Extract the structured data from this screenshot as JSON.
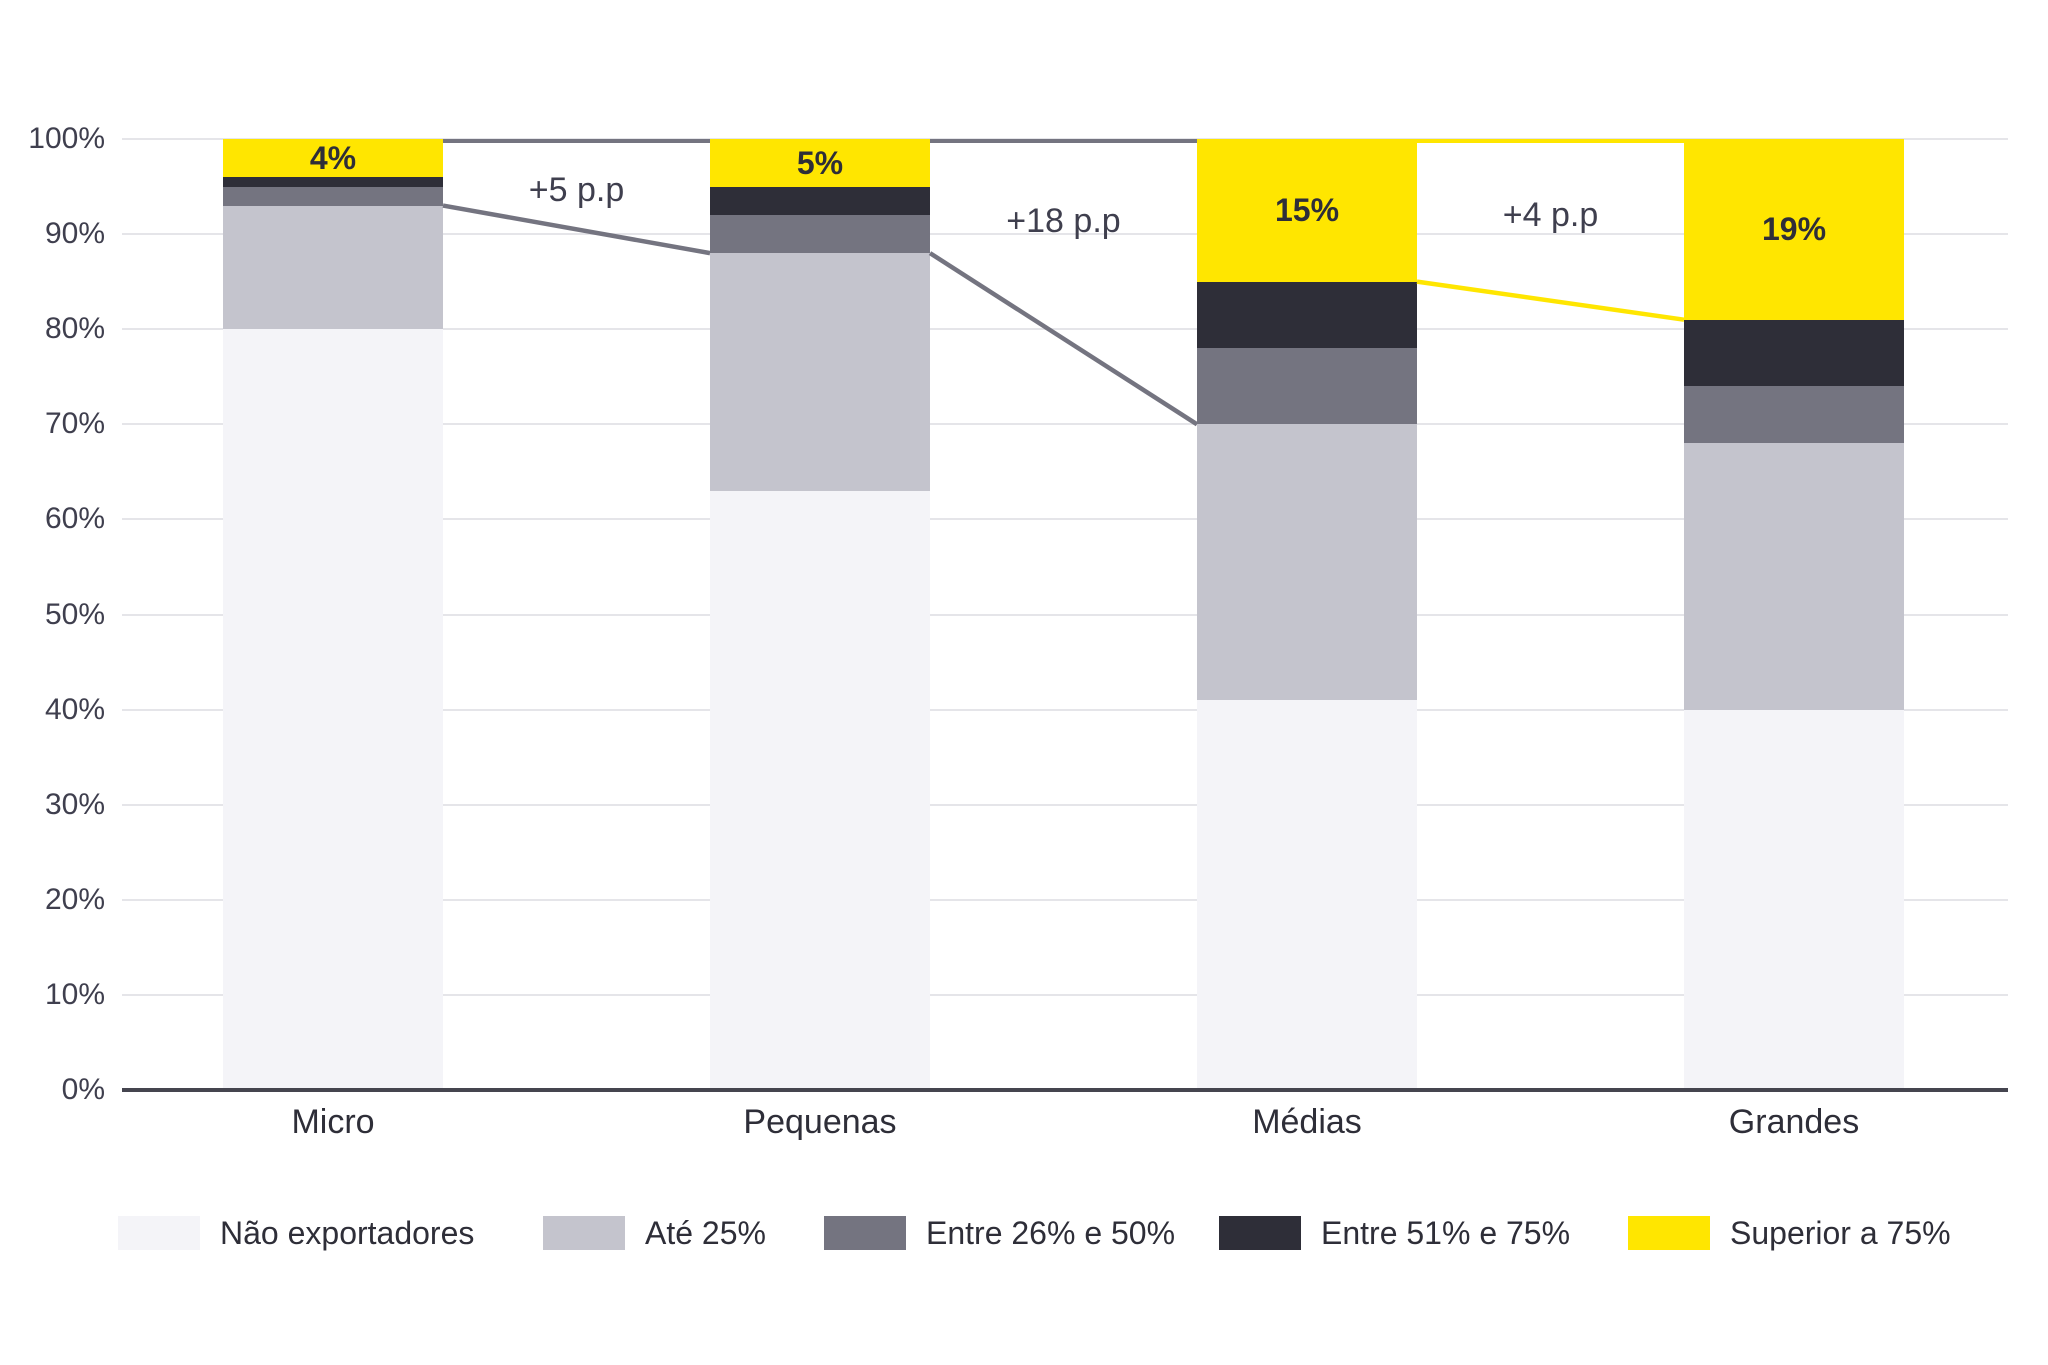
{
  "chart_data": {
    "type": "bar",
    "variant": "stacked-100-percent",
    "title": "",
    "categories": [
      "Micro",
      "Pequenas",
      "Médias",
      "Grandes"
    ],
    "series": [
      {
        "name": "Não exportadores",
        "color": "#F4F4F8",
        "values": [
          80,
          63,
          41,
          40
        ]
      },
      {
        "name": "Até 25%",
        "color": "#C4C4CD",
        "values": [
          13,
          25,
          29,
          28
        ]
      },
      {
        "name": "Entre 26% e 50%",
        "color": "#747480",
        "values": [
          2,
          4,
          8,
          6
        ]
      },
      {
        "name": "Entre 51% e 75%",
        "color": "#2E2E38",
        "values": [
          1,
          3,
          7,
          7
        ]
      },
      {
        "name": "Superior a 75%",
        "color": "#FFE600",
        "values": [
          4,
          5,
          15,
          19
        ],
        "data_labels": [
          "4%",
          "5%",
          "15%",
          "19%"
        ]
      }
    ],
    "y_axis": {
      "min": 0,
      "max": 100,
      "step": 10,
      "tick_labels": [
        "0%",
        "10%",
        "20%",
        "30%",
        "40%",
        "50%",
        "60%",
        "70%",
        "80%",
        "90%",
        "100%"
      ]
    },
    "x_axis": {
      "labels": [
        "Micro",
        "Pequenas",
        "Médias",
        "Grandes"
      ]
    },
    "grid": true,
    "legend_position": "bottom",
    "connector_annotations": [
      {
        "text": "+5 p.p",
        "from_category": "Micro",
        "to_category": "Pequenas",
        "color": "#747480",
        "top_line_pct": [
          100,
          100
        ],
        "band_line_pct": [
          93,
          88
        ]
      },
      {
        "text": "+18 p.p",
        "from_category": "Pequenas",
        "to_category": "Médias",
        "color": "#747480",
        "top_line_pct": [
          100,
          100
        ],
        "band_line_pct": [
          88,
          70
        ]
      },
      {
        "text": "+4 p.p",
        "from_category": "Médias",
        "to_category": "Grandes",
        "color": "#FFE600",
        "top_line_pct": [
          100,
          100
        ],
        "band_line_pct": [
          85,
          81
        ]
      }
    ]
  },
  "style": {
    "background": "#FFFFFF",
    "gridline_color": "#E5E5E9",
    "axis_line_color": "#45454F",
    "text_color": "#2E2E38",
    "tick_text_color": "#3F3F4E"
  }
}
